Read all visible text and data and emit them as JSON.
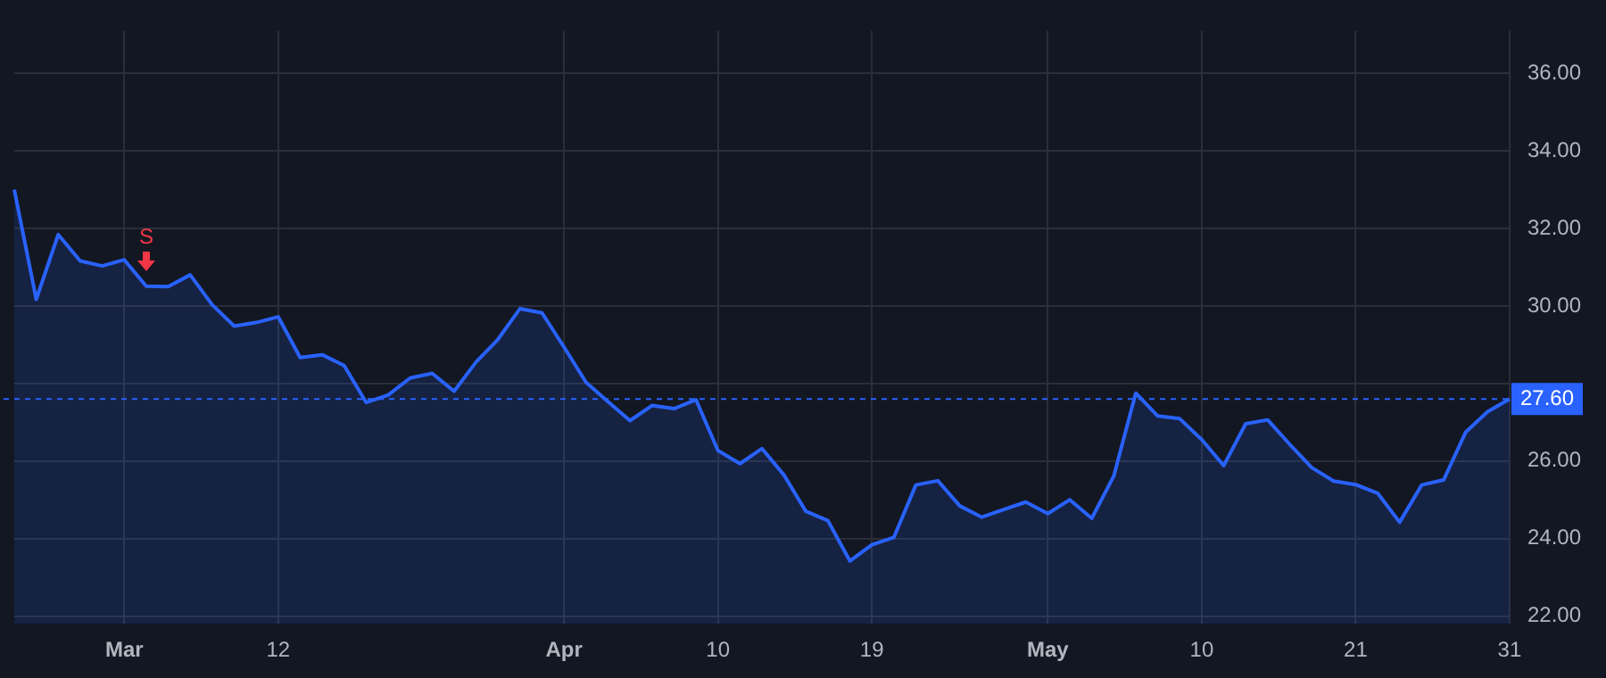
{
  "chart_data": {
    "type": "area",
    "categories": [
      null,
      null,
      null,
      null,
      null,
      "Mar",
      null,
      null,
      null,
      null,
      null,
      null,
      "12",
      null,
      null,
      null,
      null,
      null,
      null,
      null,
      null,
      null,
      null,
      null,
      null,
      "Apr",
      null,
      null,
      null,
      null,
      null,
      null,
      "10",
      null,
      null,
      null,
      null,
      null,
      null,
      "19",
      null,
      null,
      null,
      null,
      null,
      null,
      null,
      "May",
      null,
      null,
      null,
      null,
      null,
      null,
      "10",
      null,
      null,
      null,
      null,
      null,
      null,
      "21",
      null,
      null,
      null,
      null,
      null,
      null,
      "31"
    ],
    "series": [
      {
        "color": "#2962ff",
        "values": [
          33.0,
          30.17,
          31.84,
          31.16,
          31.03,
          31.19,
          30.51,
          30.5,
          30.8,
          30.03,
          29.48,
          29.57,
          29.72,
          28.67,
          28.74,
          28.46,
          27.51,
          27.7,
          28.14,
          28.26,
          27.8,
          28.55,
          29.14,
          29.93,
          29.82,
          28.94,
          28.03,
          27.53,
          27.04,
          27.43,
          27.35,
          27.58,
          26.27,
          25.93,
          26.32,
          25.64,
          24.7,
          24.46,
          23.42,
          23.84,
          24.03,
          25.38,
          25.49,
          24.84,
          24.55,
          24.75,
          24.94,
          24.64,
          25.0,
          24.52,
          25.61,
          27.75,
          27.16,
          27.09,
          26.55,
          25.88,
          26.96,
          27.06,
          26.43,
          25.83,
          25.48,
          25.39,
          25.17,
          24.42,
          25.38,
          25.51,
          26.74,
          27.27,
          27.6
        ]
      }
    ],
    "ylim": [
      21.8,
      37.1
    ],
    "yticks": [
      {
        "value": 22,
        "label": "22.00"
      },
      {
        "value": 24,
        "label": "24.00"
      },
      {
        "value": 26,
        "label": "26.00"
      },
      {
        "value": 28,
        "label": null
      },
      {
        "value": 30,
        "label": "30.00"
      },
      {
        "value": 32,
        "label": "32.00"
      },
      {
        "value": 34,
        "label": "34.00"
      },
      {
        "value": 36,
        "label": "36.00"
      }
    ],
    "grid": true,
    "legend": false,
    "ref_lines": [
      {
        "axis": "y",
        "value": 27.6,
        "label": "27.60",
        "color": "#2962ff",
        "line_style": "dashed"
      }
    ],
    "annotations": [
      {
        "text": "S",
        "y": 30.51
      }
    ]
  }
}
